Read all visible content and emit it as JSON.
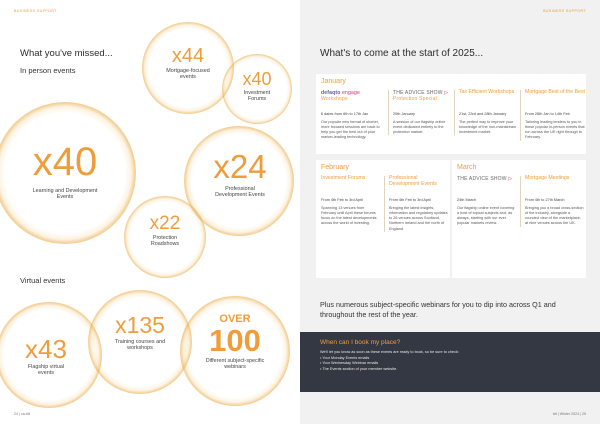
{
  "header": {
    "left": "BUSINESS SUPPORT",
    "right": "BUSINESS SUPPORT"
  },
  "left": {
    "title": "What you've missed...",
    "in_person_heading": "In person events",
    "virtual_heading": "Virtual events",
    "stats": {
      "mortgage": {
        "value": "x44",
        "label": "Mortgage-focused events"
      },
      "investment": {
        "value": "x40",
        "label": "Investment Forums"
      },
      "learning": {
        "value": "x40",
        "label": "Learning and Development Events"
      },
      "professional": {
        "value": "x24",
        "label": "Professional Development Events"
      },
      "protection": {
        "value": "x22",
        "label": "Protection Roadshows"
      },
      "flagship": {
        "value": "x43",
        "label": "Flagship virtual events"
      },
      "training": {
        "value": "x135",
        "label": "Training courses and workshops"
      },
      "webinars": {
        "prefix": "OVER",
        "value": "100",
        "label": "Different subject-specific webinars"
      }
    },
    "footer": "24 | ca-tdt"
  },
  "right": {
    "title": "What's to come at the start of 2025...",
    "january": {
      "month": "January",
      "events": [
        {
          "logo_a": "defaqto",
          "logo_b": "engage",
          "title": "Workshops",
          "date": "6 dates from 6th to 17th Jan",
          "desc": "Our popular new format of shorter, more focused sessions are back to help you get the best out of your market-leading technology."
        },
        {
          "logo_a": "THE ADVICE SHOW",
          "logo_b": "",
          "title": "Protection Special",
          "date": "20th January",
          "desc": "A session of our flagship online event dedicated entirely to the protection market."
        },
        {
          "logo_a": "",
          "logo_b": "",
          "title": "Tax Efficient Workshops",
          "date": "21st, 23rd and 28th January",
          "desc": "The perfect way to improve your knowledge of the non-mainstream investment market."
        },
        {
          "logo_a": "",
          "logo_b": "",
          "title": "Mortgage Best of the Best",
          "date": "From 28th Jan to 14th Feb",
          "desc": "Tailoring leading lenders to you in these popular in-person events that run across the UK right through to February."
        }
      ]
    },
    "february": {
      "month": "February",
      "events": [
        {
          "title": "Investment Forums",
          "date": "From 4th Feb to 3rd April",
          "desc": "Spanning 13 venues from February until April these forums focus on the latest developments across the world of investing."
        },
        {
          "title": "Professional Development Events",
          "date": "From 4th Feb to 3rd April",
          "desc": "Bringing the latest insights, information and regulatory updates to 26 venues across Scotland, Northern Ireland and the north of England."
        }
      ]
    },
    "march": {
      "month": "March",
      "events": [
        {
          "logo_a": "THE ADVICE SHOW",
          "title": "",
          "date": "24th March",
          "desc": "Our flagship online event covering a host of topical subjects and, as always, starting with our ever popular markets review."
        },
        {
          "title": "Mortgage Meetings",
          "date": "From 4th to 27th March",
          "desc": "Bringing you a broad cross-section of the industry, alongside a rounded view of the marketplace, at nine venues across the UK."
        }
      ]
    },
    "plus_text": "Plus numerous subject-specific webinars for you to dip into across Q1 and throughout the rest of the year.",
    "booking": {
      "title": "When can I book my place?",
      "intro": "We'll let you know as soon as these events are ready to book, so be sure to check:",
      "items": [
        "Your Monday Events emails",
        "Your Wednesday Webinar emails",
        "The Events section of your member website."
      ]
    },
    "footer": "tdt | Winter 2024 | 25"
  },
  "colors": {
    "accent": "#ef9d3b",
    "dark_panel": "#343842",
    "right_bg": "#f1f1f1"
  }
}
